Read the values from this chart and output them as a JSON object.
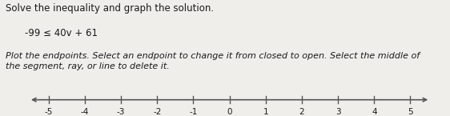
{
  "title_line1": "Solve the inequality and graph the solution.",
  "inequality": "-99 ≤ 40v + 61",
  "instruction": "Plot the endpoints. Select an endpoint to change it from closed to open. Select the middle of\nthe segment, ray, or line to delete it.",
  "number_line_min": -5,
  "number_line_max": 5,
  "tick_positions": [
    -5,
    -4,
    -3,
    -2,
    -1,
    0,
    1,
    2,
    3,
    4,
    5
  ],
  "background_color": "#f0eeeb",
  "text_color": "#1a1a1a",
  "axis_color": "#555555",
  "title_fontsize": 8.5,
  "inequality_fontsize": 8.5,
  "instruction_fontsize": 8.0,
  "tick_fontsize": 7.5
}
